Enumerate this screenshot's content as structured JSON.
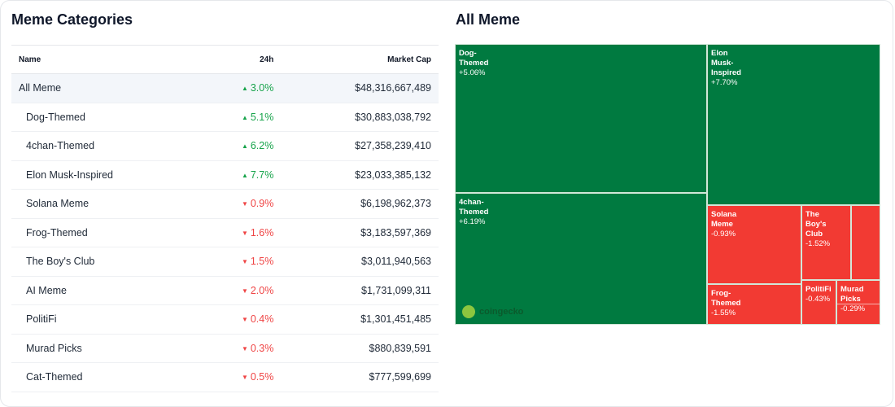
{
  "left": {
    "title": "Meme Categories",
    "columns": [
      "Name",
      "24h",
      "Market Cap"
    ],
    "rows": [
      {
        "name": "All Meme",
        "change": "3.0%",
        "dir": "up",
        "cap": "$48,316,667,489"
      },
      {
        "name": "Dog-Themed",
        "change": "5.1%",
        "dir": "up",
        "cap": "$30,883,038,792"
      },
      {
        "name": "4chan-Themed",
        "change": "6.2%",
        "dir": "up",
        "cap": "$27,358,239,410"
      },
      {
        "name": "Elon Musk-Inspired",
        "change": "7.7%",
        "dir": "up",
        "cap": "$23,033,385,132"
      },
      {
        "name": "Solana Meme",
        "change": "0.9%",
        "dir": "down",
        "cap": "$6,198,962,373"
      },
      {
        "name": "Frog-Themed",
        "change": "1.6%",
        "dir": "down",
        "cap": "$3,183,597,369"
      },
      {
        "name": "The Boy's Club",
        "change": "1.5%",
        "dir": "down",
        "cap": "$3,011,940,563"
      },
      {
        "name": "AI Meme",
        "change": "2.0%",
        "dir": "down",
        "cap": "$1,731,099,311"
      },
      {
        "name": "PolitiFi",
        "change": "0.4%",
        "dir": "down",
        "cap": "$1,301,451,485"
      },
      {
        "name": "Murad Picks",
        "change": "0.3%",
        "dir": "down",
        "cap": "$880,839,591"
      },
      {
        "name": "Cat-Themed",
        "change": "0.5%",
        "dir": "down",
        "cap": "$777,599,699"
      }
    ]
  },
  "right": {
    "title": "All Meme",
    "watermark": "coingecko",
    "colors": {
      "up": "#007a40",
      "down": "#f23a33"
    },
    "tiles": [
      {
        "name": "Dog-Themed",
        "label": "Dog-\nThemed",
        "change": "+5.06%",
        "dir": "up"
      },
      {
        "name": "4chan-Themed",
        "label": "4chan-\nThemed",
        "change": "+6.19%",
        "dir": "up"
      },
      {
        "name": "Elon Musk-Inspired",
        "label": "Elon\nMusk-\nInspired",
        "change": "+7.70%",
        "dir": "up"
      },
      {
        "name": "Solana Meme",
        "label": "Solana\nMeme",
        "change": "-0.93%",
        "dir": "down"
      },
      {
        "name": "The Boy's Club",
        "label": "The\nBoy's\nClub",
        "change": "-1.52%",
        "dir": "down"
      },
      {
        "name": "",
        "label": "",
        "change": "",
        "dir": "down"
      },
      {
        "name": "Frog-Themed",
        "label": "Frog-\nThemed",
        "change": "-1.55%",
        "dir": "down"
      },
      {
        "name": "PolitiFi",
        "label": "PolitiFi",
        "change": "-0.43%",
        "dir": "down"
      },
      {
        "name": "Murad Picks",
        "label": "Murad\nPicks",
        "change": "-0.29%",
        "dir": "down"
      }
    ]
  }
}
